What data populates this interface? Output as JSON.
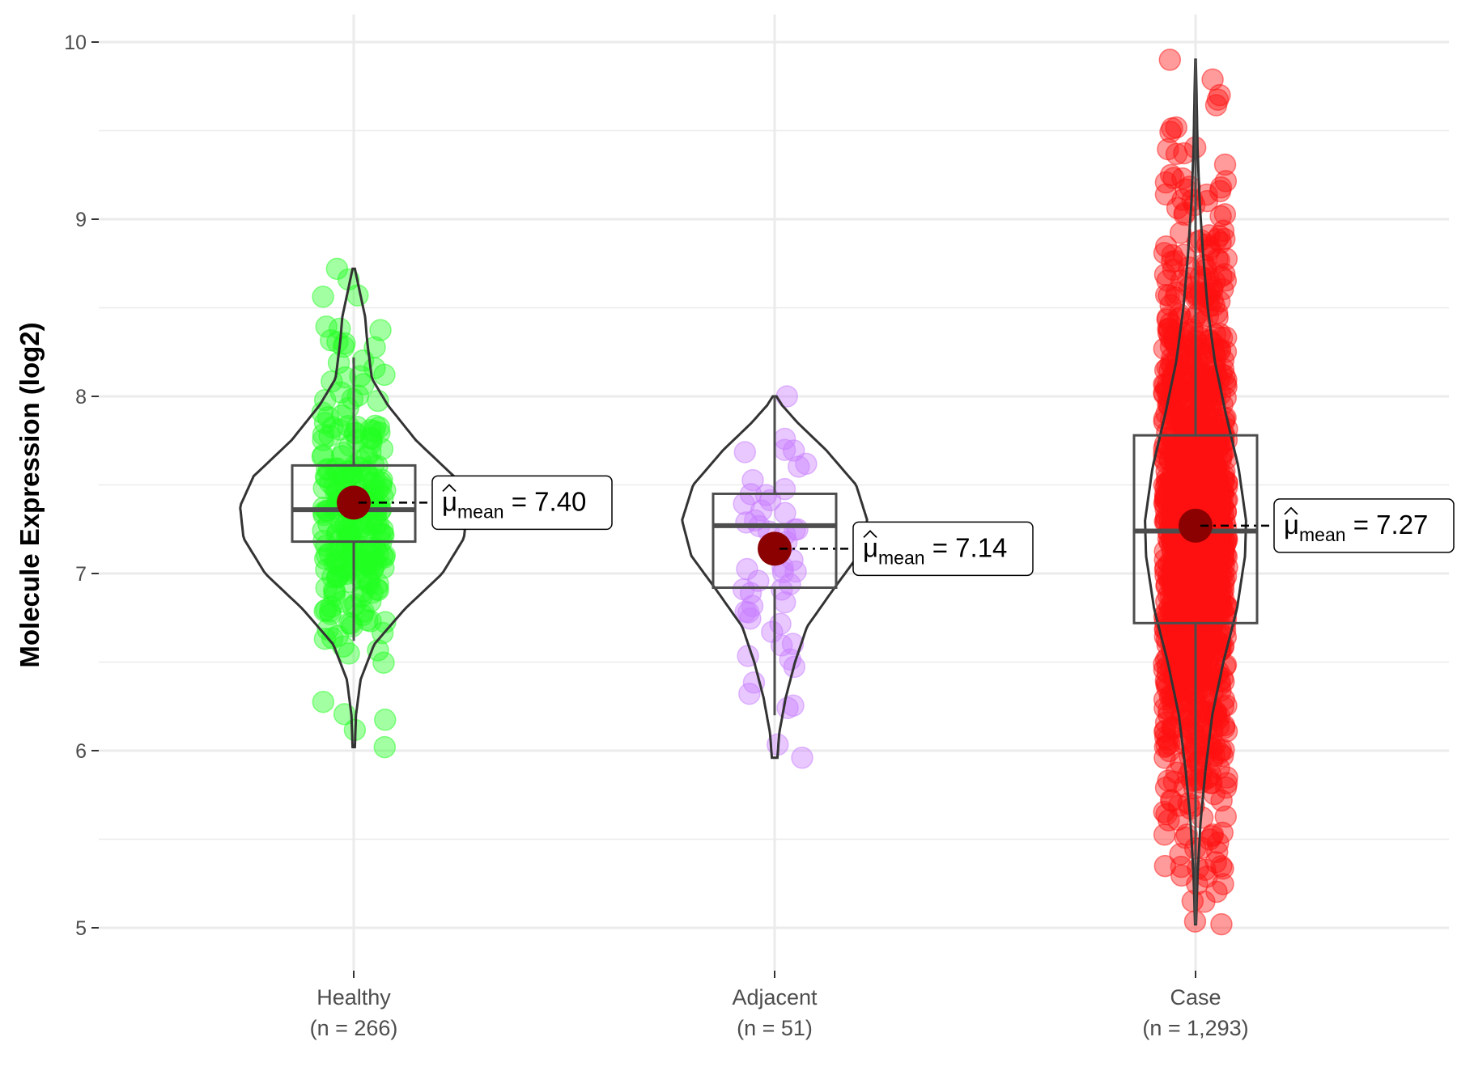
{
  "chart_data": {
    "type": "violin",
    "ylabel": "Molecule Expression (log2)",
    "ylim": [
      4.75,
      10.2
    ],
    "y_ticks": [
      5,
      6,
      7,
      8,
      9,
      10
    ],
    "y_tick_labels": [
      "5",
      "6",
      "7",
      "8",
      "9",
      "10"
    ],
    "grid": true,
    "colors": {
      "grid": "#ebebeb",
      "axis_tick": "#333333",
      "violin_outline": "#333333",
      "box_outline": "#4d4d4d",
      "mean_point": "#8b0000"
    },
    "mean_symbol": "μ",
    "mean_subscript": "mean",
    "series": [
      {
        "name": "Healthy",
        "label_line1": "Healthy",
        "label_line2": "(n = 266)",
        "n": 266,
        "color": "#22ff22",
        "point_count_drawn": 266,
        "seed": 11,
        "mean": 7.4,
        "mean_label": "7.40",
        "box": {
          "q1": 7.18,
          "median": 7.36,
          "q3": 7.61,
          "whisker_low": 6.62,
          "whisker_high": 8.22
        },
        "range": [
          6.02,
          8.72
        ],
        "violin_profile": [
          [
            6.02,
            0.01
          ],
          [
            6.2,
            0.02
          ],
          [
            6.4,
            0.06
          ],
          [
            6.6,
            0.18
          ],
          [
            6.8,
            0.45
          ],
          [
            7.0,
            0.78
          ],
          [
            7.2,
            0.97
          ],
          [
            7.38,
            1.0
          ],
          [
            7.55,
            0.88
          ],
          [
            7.75,
            0.55
          ],
          [
            7.95,
            0.3
          ],
          [
            8.1,
            0.16
          ],
          [
            8.3,
            0.12
          ],
          [
            8.45,
            0.1
          ],
          [
            8.6,
            0.05
          ],
          [
            8.72,
            0.01
          ]
        ],
        "violin_halfwidth": 0.27
      },
      {
        "name": "Adjacent",
        "label_line1": "Adjacent",
        "label_line2": "(n = 51)",
        "n": 51,
        "color": "#c77dff",
        "point_count_drawn": 51,
        "seed": 23,
        "mean": 7.14,
        "mean_label": "7.14",
        "box": {
          "q1": 6.92,
          "median": 7.27,
          "q3": 7.45,
          "whisker_low": 6.2,
          "whisker_high": 8.0
        },
        "range": [
          5.96,
          8.0
        ],
        "violin_profile": [
          [
            5.96,
            0.03
          ],
          [
            6.1,
            0.05
          ],
          [
            6.3,
            0.12
          ],
          [
            6.5,
            0.22
          ],
          [
            6.7,
            0.35
          ],
          [
            6.9,
            0.62
          ],
          [
            7.1,
            0.9
          ],
          [
            7.3,
            1.0
          ],
          [
            7.5,
            0.88
          ],
          [
            7.7,
            0.55
          ],
          [
            7.85,
            0.25
          ],
          [
            7.95,
            0.08
          ],
          [
            8.0,
            0.02
          ]
        ],
        "violin_halfwidth": 0.22
      },
      {
        "name": "Case",
        "label_line1": "Case",
        "label_line2": "(n = 1,293)",
        "n": 1293,
        "color": "#ff1111",
        "point_count_drawn": 1293,
        "seed": 37,
        "mean": 7.27,
        "mean_label": "7.27",
        "box": {
          "q1": 6.72,
          "median": 7.24,
          "q3": 7.78,
          "whisker_low": 5.02,
          "whisker_high": 9.9
        },
        "range": [
          5.02,
          9.9
        ],
        "violin_profile": [
          [
            5.02,
            0.01
          ],
          [
            5.3,
            0.04
          ],
          [
            5.6,
            0.1
          ],
          [
            5.9,
            0.2
          ],
          [
            6.2,
            0.33
          ],
          [
            6.5,
            0.55
          ],
          [
            6.8,
            0.82
          ],
          [
            7.1,
            0.98
          ],
          [
            7.3,
            1.0
          ],
          [
            7.6,
            0.85
          ],
          [
            7.9,
            0.6
          ],
          [
            8.2,
            0.38
          ],
          [
            8.5,
            0.24
          ],
          [
            8.8,
            0.15
          ],
          [
            9.1,
            0.08
          ],
          [
            9.4,
            0.04
          ],
          [
            9.7,
            0.02
          ],
          [
            9.9,
            0.005
          ]
        ],
        "violin_halfwidth": 0.12
      }
    ]
  }
}
